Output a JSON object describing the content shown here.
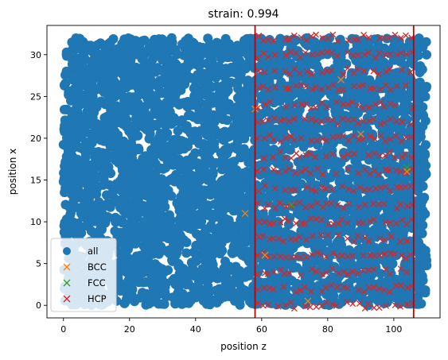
{
  "chart_data": {
    "type": "scatter",
    "title": "strain: 0.994",
    "xlabel": "position z",
    "ylabel": "position x",
    "xlim": [
      -5,
      114
    ],
    "ylim": [
      -1.5,
      33.5
    ],
    "xticks": [
      0,
      20,
      40,
      60,
      80,
      100
    ],
    "yticks": [
      0,
      5,
      10,
      15,
      20,
      25,
      30
    ],
    "grid": false,
    "legend_position": "lower-left",
    "vlines": [
      {
        "x": 58,
        "color": "#c00000"
      },
      {
        "x": 106,
        "color": "#c00000"
      }
    ],
    "series": [
      {
        "name": "all",
        "marker": "circle",
        "color": "#1f77b4",
        "x_range": [
          0,
          110
        ],
        "y_range": [
          0,
          32
        ],
        "description_of_region": "dense uniform cloud"
      },
      {
        "name": "BCC",
        "marker": "x",
        "color": "#ff7f0e",
        "points": [
          [
            55,
            11
          ],
          [
            58,
            23.5
          ],
          [
            61,
            6
          ],
          [
            84,
            27
          ],
          [
            90,
            20.5
          ],
          [
            104,
            16
          ],
          [
            74,
            0.5
          ]
        ]
      },
      {
        "name": "FCC",
        "marker": "x",
        "color": "#2ca02c",
        "points": [
          [
            104,
            16.5
          ],
          [
            69,
            12
          ]
        ]
      },
      {
        "name": "HCP",
        "marker": "x",
        "color": "#d62728",
        "x_range": [
          58,
          106
        ],
        "y_range": [
          0,
          32
        ],
        "rows_y": [
          0,
          2,
          4,
          6,
          8,
          10,
          12,
          14,
          16,
          18,
          20,
          22,
          24,
          26,
          28,
          30,
          32
        ]
      }
    ]
  }
}
